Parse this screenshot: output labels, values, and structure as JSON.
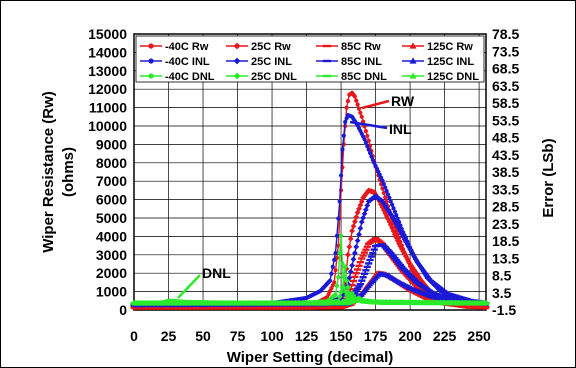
{
  "chart_data": {
    "type": "scatter",
    "title": "",
    "xlabel": "Wiper Setting (decimal)",
    "ylabel_left": "Wiper Resistance (Rw)\n(ohms)",
    "ylabel_left_lines": [
      "Wiper Resistance (Rw)",
      "(ohms)"
    ],
    "ylabel_right": "Error (LSb)",
    "xlim": [
      0,
      255
    ],
    "ylim_left": [
      0,
      15000
    ],
    "ylim_right": [
      -1.5,
      78.5
    ],
    "x_ticks": [
      "0",
      "25",
      "50",
      "75",
      "100",
      "125",
      "150",
      "175",
      "200",
      "225",
      "250"
    ],
    "y_left_ticks": [
      "0",
      "1000",
      "2000",
      "3000",
      "4000",
      "5000",
      "6000",
      "7000",
      "8000",
      "9000",
      "10000",
      "11000",
      "12000",
      "13000",
      "14000",
      "15000"
    ],
    "y_right_ticks": [
      "-1.5",
      "3.5",
      "8.5",
      "13.5",
      "18.5",
      "23.5",
      "28.5",
      "33.5",
      "38.5",
      "43.5",
      "48.5",
      "53.5",
      "58.5",
      "63.5",
      "68.5",
      "73.5",
      "78.5"
    ],
    "grid": true,
    "legend_position": "top",
    "series": [
      {
        "name": "-40C Rw",
        "color": "#e8171b",
        "marker": "circle",
        "axis": "left",
        "points": [
          [
            0,
            150
          ],
          [
            100,
            150
          ],
          [
            130,
            280
          ],
          [
            140,
            700
          ],
          [
            145,
            1500
          ],
          [
            148,
            3500
          ],
          [
            150,
            6500
          ],
          [
            152,
            9000
          ],
          [
            154,
            11000
          ],
          [
            156,
            11700
          ],
          [
            158,
            11800
          ],
          [
            160,
            11600
          ],
          [
            165,
            10500
          ],
          [
            170,
            9200
          ],
          [
            175,
            7800
          ],
          [
            180,
            6600
          ],
          [
            185,
            5400
          ],
          [
            190,
            4300
          ],
          [
            195,
            3300
          ],
          [
            200,
            2400
          ],
          [
            205,
            1700
          ],
          [
            210,
            1150
          ],
          [
            215,
            800
          ],
          [
            220,
            550
          ],
          [
            230,
            300
          ],
          [
            240,
            180
          ],
          [
            255,
            150
          ]
        ]
      },
      {
        "name": "25C Rw",
        "color": "#e8171b",
        "marker": "diamond",
        "axis": "left",
        "points": [
          [
            0,
            150
          ],
          [
            130,
            150
          ],
          [
            145,
            250
          ],
          [
            150,
            700
          ],
          [
            153,
            1500
          ],
          [
            155,
            3000
          ],
          [
            158,
            4300
          ],
          [
            162,
            5300
          ],
          [
            166,
            6100
          ],
          [
            170,
            6500
          ],
          [
            174,
            6400
          ],
          [
            178,
            5900
          ],
          [
            185,
            4800
          ],
          [
            192,
            3600
          ],
          [
            200,
            2500
          ],
          [
            208,
            1600
          ],
          [
            215,
            950
          ],
          [
            225,
            500
          ],
          [
            240,
            230
          ],
          [
            255,
            150
          ]
        ]
      },
      {
        "name": "85C Rw",
        "color": "#e8171b",
        "marker": "dash",
        "axis": "left",
        "points": [
          [
            0,
            150
          ],
          [
            145,
            150
          ],
          [
            152,
            300
          ],
          [
            156,
            900
          ],
          [
            160,
            1800
          ],
          [
            165,
            2800
          ],
          [
            170,
            3600
          ],
          [
            175,
            3900
          ],
          [
            180,
            3600
          ],
          [
            187,
            2900
          ],
          [
            195,
            2100
          ],
          [
            205,
            1300
          ],
          [
            215,
            700
          ],
          [
            228,
            350
          ],
          [
            245,
            180
          ],
          [
            255,
            150
          ]
        ]
      },
      {
        "name": "125C Rw",
        "color": "#e8171b",
        "marker": "triangle",
        "axis": "left",
        "points": [
          [
            0,
            150
          ],
          [
            150,
            150
          ],
          [
            158,
            350
          ],
          [
            164,
            800
          ],
          [
            170,
            1400
          ],
          [
            176,
            2000
          ],
          [
            182,
            1950
          ],
          [
            190,
            1600
          ],
          [
            200,
            1100
          ],
          [
            212,
            650
          ],
          [
            225,
            350
          ],
          [
            245,
            180
          ],
          [
            255,
            150
          ]
        ]
      },
      {
        "name": "-40C INL",
        "color": "#1a1ad6",
        "marker": "circle",
        "axis": "right",
        "points": [
          [
            0,
            0
          ],
          [
            100,
            0.5
          ],
          [
            125,
            2
          ],
          [
            135,
            4
          ],
          [
            142,
            7
          ],
          [
            146,
            15
          ],
          [
            149,
            30
          ],
          [
            151,
            45
          ],
          [
            153,
            53
          ],
          [
            155,
            55
          ],
          [
            158,
            54.5
          ],
          [
            162,
            52
          ],
          [
            167,
            48
          ],
          [
            173,
            42
          ],
          [
            180,
            36
          ],
          [
            187,
            29
          ],
          [
            195,
            21
          ],
          [
            203,
            14
          ],
          [
            212,
            8
          ],
          [
            222,
            4
          ],
          [
            235,
            1.5
          ],
          [
            255,
            0.5
          ]
        ]
      },
      {
        "name": "25C INL",
        "color": "#1a1ad6",
        "marker": "diamond",
        "axis": "right",
        "points": [
          [
            0,
            0
          ],
          [
            140,
            0.3
          ],
          [
            150,
            2
          ],
          [
            155,
            6
          ],
          [
            160,
            15
          ],
          [
            165,
            24
          ],
          [
            170,
            30
          ],
          [
            175,
            31.5
          ],
          [
            180,
            30
          ],
          [
            188,
            25
          ],
          [
            196,
            19
          ],
          [
            205,
            12.5
          ],
          [
            215,
            7
          ],
          [
            228,
            3
          ],
          [
            245,
            1
          ],
          [
            255,
            0.5
          ]
        ]
      },
      {
        "name": "85C INL",
        "color": "#1a1ad6",
        "marker": "dash",
        "axis": "right",
        "points": [
          [
            0,
            0
          ],
          [
            150,
            0.3
          ],
          [
            158,
            2
          ],
          [
            164,
            6
          ],
          [
            170,
            12
          ],
          [
            175,
            17
          ],
          [
            180,
            17.5
          ],
          [
            186,
            15
          ],
          [
            195,
            10.5
          ],
          [
            205,
            6.5
          ],
          [
            216,
            3.5
          ],
          [
            230,
            1.5
          ],
          [
            255,
            0.5
          ]
        ]
      },
      {
        "name": "125C INL",
        "color": "#1a1ad6",
        "marker": "triangle",
        "axis": "right",
        "points": [
          [
            0,
            0
          ],
          [
            155,
            0.3
          ],
          [
            165,
            3
          ],
          [
            172,
            6.5
          ],
          [
            178,
            9
          ],
          [
            184,
            8.5
          ],
          [
            192,
            6.5
          ],
          [
            202,
            4.5
          ],
          [
            215,
            2.5
          ],
          [
            230,
            1
          ],
          [
            255,
            0.3
          ]
        ]
      },
      {
        "name": "-40C DNL",
        "color": "#2bea2b",
        "marker": "circle",
        "axis": "right",
        "points": [
          [
            0,
            0.5
          ],
          [
            20,
            0.6
          ],
          [
            25,
            1.2
          ],
          [
            40,
            0.8
          ],
          [
            80,
            0.5
          ],
          [
            120,
            0.5
          ],
          [
            140,
            1
          ],
          [
            146,
            3
          ],
          [
            148,
            8
          ],
          [
            149,
            15
          ],
          [
            150,
            20
          ],
          [
            151,
            12
          ],
          [
            152,
            5
          ],
          [
            155,
            2
          ],
          [
            160,
            1.5
          ],
          [
            170,
            0.8
          ],
          [
            200,
            0.5
          ],
          [
            255,
            0.5
          ]
        ]
      },
      {
        "name": "25C DNL",
        "color": "#2bea2b",
        "marker": "diamond",
        "axis": "right",
        "points": [
          [
            0,
            0.5
          ],
          [
            140,
            0.5
          ],
          [
            148,
            1
          ],
          [
            151,
            5
          ],
          [
            153,
            11
          ],
          [
            154,
            7
          ],
          [
            156,
            3
          ],
          [
            160,
            1.5
          ],
          [
            175,
            0.8
          ],
          [
            255,
            0.5
          ]
        ]
      },
      {
        "name": "85C DNL",
        "color": "#2bea2b",
        "marker": "dash",
        "axis": "right",
        "points": [
          [
            0,
            0.5
          ],
          [
            150,
            0.5
          ],
          [
            155,
            1.5
          ],
          [
            157,
            3.5
          ],
          [
            159,
            2
          ],
          [
            165,
            1
          ],
          [
            255,
            0.5
          ]
        ]
      },
      {
        "name": "125C DNL",
        "color": "#2bea2b",
        "marker": "triangle",
        "axis": "right",
        "points": [
          [
            0,
            0.5
          ],
          [
            155,
            0.5
          ],
          [
            160,
            1.2
          ],
          [
            163,
            2
          ],
          [
            166,
            1
          ],
          [
            180,
            0.6
          ],
          [
            255,
            0.5
          ]
        ]
      }
    ],
    "annotations": [
      {
        "text": "RW",
        "x": 158,
        "y": 11800
      },
      {
        "text": "INL",
        "x": 158,
        "y": 10200
      },
      {
        "text": "DNL",
        "x": 24,
        "y": 200
      }
    ]
  }
}
